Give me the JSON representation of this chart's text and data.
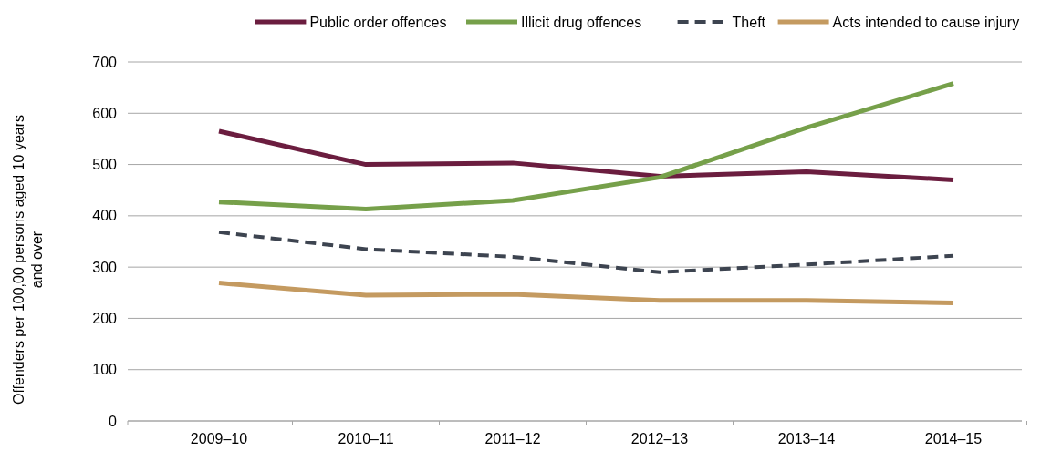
{
  "chart_data": {
    "type": "line",
    "ylabel": "Offenders per 100,00 persons aged 10 years and over",
    "categories": [
      "2009–10",
      "2010–11",
      "2011–12",
      "2012–13",
      "2013–14",
      "2014–15"
    ],
    "series": [
      {
        "name": "Public order offences",
        "color": "#6b1d3f",
        "values": [
          565,
          500,
          503,
          477,
          486,
          470
        ]
      },
      {
        "name": "Illicit drug offences",
        "color": "#76a04a",
        "values": [
          427,
          413,
          430,
          475,
          572,
          658
        ]
      },
      {
        "name": "Theft",
        "color": "#3d4450",
        "line_style": "dashed",
        "values": [
          368,
          335,
          320,
          290,
          305,
          322
        ]
      },
      {
        "name": "Acts intended to cause injury",
        "color": "#c49a60",
        "values": [
          269,
          245,
          247,
          235,
          235,
          230
        ]
      }
    ],
    "ylim": [
      0,
      700
    ],
    "yticks": [
      0,
      100,
      200,
      300,
      400,
      500,
      600,
      700
    ],
    "grid": "y",
    "legend": "top",
    "marker": "none"
  }
}
